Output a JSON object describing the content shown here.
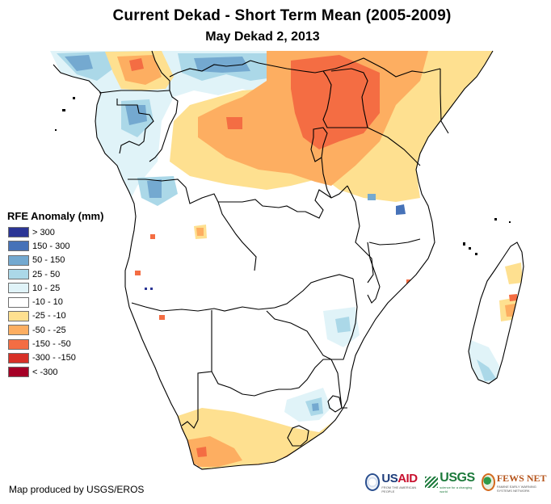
{
  "title": "Current Dekad - Short Term Mean (2005-2009)",
  "subtitle": "May Dekad 2, 2013",
  "legend": {
    "title": "RFE Anomaly (mm)",
    "classes": [
      {
        "label": "> 300",
        "color": "#2b3595"
      },
      {
        "label": "150 - 300",
        "color": "#4672b8"
      },
      {
        "label": "50 - 150",
        "color": "#74a9d0"
      },
      {
        "label": "25 - 50",
        "color": "#abd8e8"
      },
      {
        "label": "10 - 25",
        "color": "#e0f3f8"
      },
      {
        "label": "-10 - 10",
        "color": "#ffffff"
      },
      {
        "label": "-25 - -10",
        "color": "#fee090"
      },
      {
        "label": "-50 - -25",
        "color": "#fdae61"
      },
      {
        "label": "-150 - -50",
        "color": "#f46d43"
      },
      {
        "label": "-300 - -150",
        "color": "#d73027"
      },
      {
        "label": "< -300",
        "color": "#a50026"
      }
    ]
  },
  "credit": "Map produced by USGS/EROS",
  "logos": {
    "usaid": {
      "us": "US",
      "aid": "AID",
      "tagline": "FROM THE AMERICAN PEOPLE"
    },
    "usgs": {
      "name": "USGS",
      "tagline": "science for a changing world"
    },
    "fewsnet": {
      "name": "FEWS NET",
      "tagline": "FAMINE EARLY WARNING SYSTEMS NETWORK"
    }
  },
  "map": {
    "region": "Southern and Central Africa with Madagascar",
    "anomaly_summary": [
      {
        "area": "Uganda / western Kenya / eastern DRC",
        "class": "-150 - -50"
      },
      {
        "area": "Central DRC",
        "class": "-50 - -25"
      },
      {
        "area": "Gabon / Congo / Cameroon",
        "class": "50 - 150"
      },
      {
        "area": "Northern Angola",
        "class": "50 - 150"
      },
      {
        "area": "Tanzania",
        "class": "-25 - -10"
      },
      {
        "area": "Western Cape, South Africa",
        "class": "-50 - -25"
      },
      {
        "area": "Eastern South Africa / Swaziland",
        "class": "25 - 50"
      },
      {
        "area": "Southern Madagascar",
        "class": "25 - 50"
      },
      {
        "area": "Eastern Madagascar",
        "class": "-50 - -25"
      },
      {
        "area": "Most of Southern Africa interior",
        "class": "-10 - 10"
      }
    ]
  }
}
